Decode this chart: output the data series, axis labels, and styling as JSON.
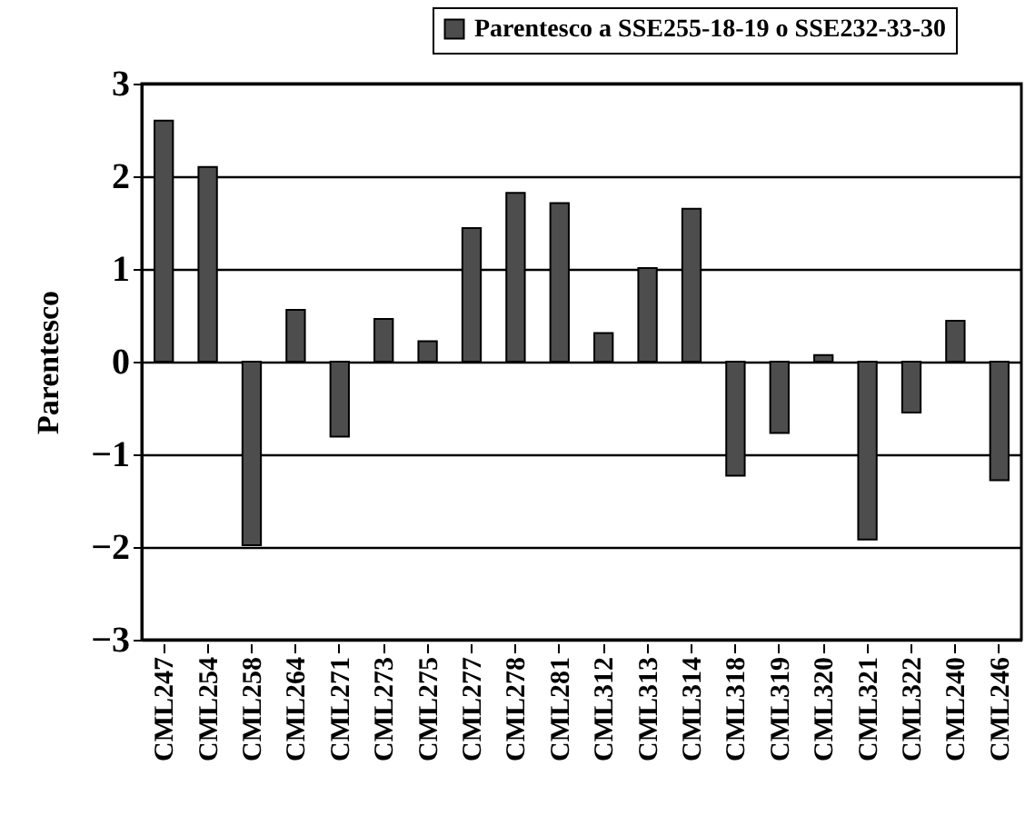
{
  "chart_data": {
    "type": "bar",
    "ylabel": "Parentesco",
    "categories": [
      "CML247",
      "CML254",
      "CML258",
      "CML264",
      "CML271",
      "CML273",
      "CML275",
      "CML277",
      "CML278",
      "CML281",
      "CML312",
      "CML313",
      "CML314",
      "CML318",
      "CML319",
      "CML320",
      "CML321",
      "CML322",
      "CML240",
      "CML246"
    ],
    "series": [
      {
        "name": "Parentesco a SSE255-18-19 o SSE232-33-30",
        "color": "#4d4d4d",
        "values": [
          2.6,
          2.1,
          -1.98,
          0.56,
          -0.81,
          0.46,
          0.22,
          1.44,
          1.82,
          1.71,
          0.31,
          1.01,
          1.65,
          -1.23,
          -0.77,
          0.07,
          -1.92,
          -0.55,
          0.44,
          -1.28
        ]
      }
    ],
    "ylim": [
      -3,
      3
    ],
    "yticks": [
      -3,
      -2,
      -1,
      0,
      1,
      2,
      3
    ],
    "grid": "y",
    "legend": "top right"
  }
}
